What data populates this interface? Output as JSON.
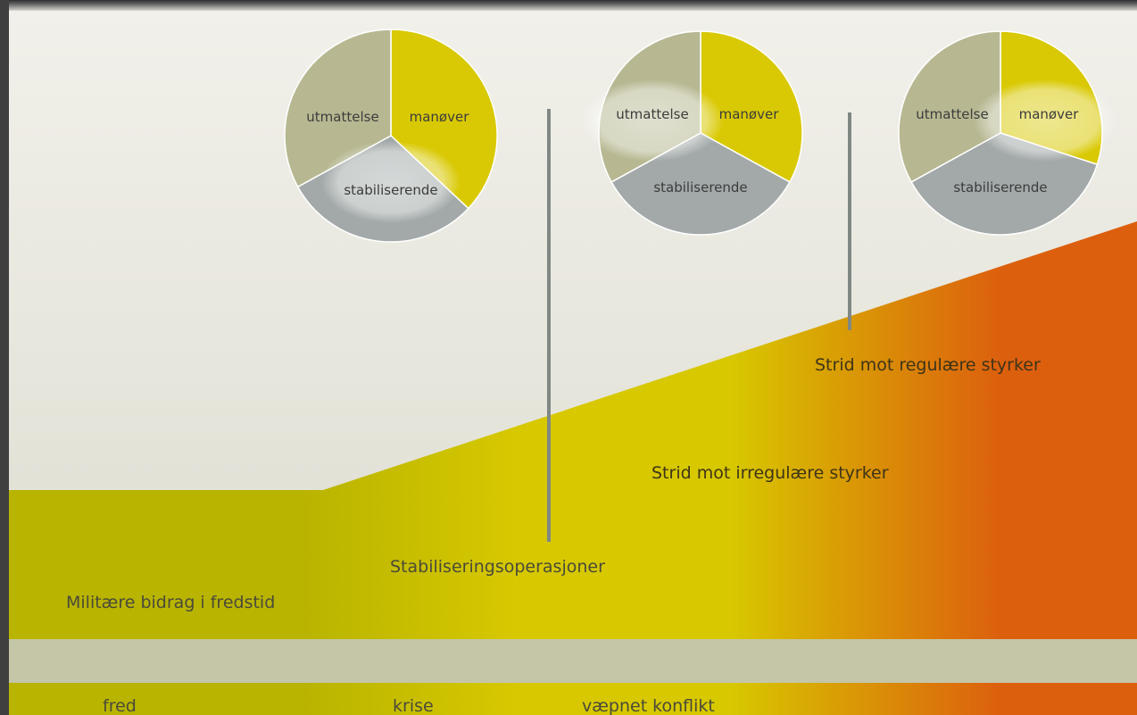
{
  "colors": {
    "stabilization_band": "#c4c6a7",
    "gradient_start": "#b9b400",
    "gradient_mid": "#d7c800",
    "gradient_end": "#dc5f0e",
    "divider": "#808884",
    "slice_attrition": "#b7b892",
    "slice_maneuver": "#d9c904",
    "slice_stabilizing": "#a2a9a8"
  },
  "operations": [
    {
      "key": "peace_contrib",
      "label": "Militære bidrag i fredstid"
    },
    {
      "key": "stabilization",
      "label": "Stabiliseringsoperasjoner"
    },
    {
      "key": "irregular",
      "label": "Strid mot irregulære styrker"
    },
    {
      "key": "regular",
      "label": "Strid mot regulære styrker"
    }
  ],
  "states": [
    {
      "key": "peace",
      "label": "fred"
    },
    {
      "key": "crisis",
      "label": "krise"
    },
    {
      "key": "armed_conflict",
      "label": "væpnet konflikt"
    }
  ],
  "pies": [
    {
      "name": "pie-1",
      "emphasis": "stabiliserende",
      "slices": [
        {
          "key": "manover",
          "label": "manøver",
          "share": 0.37,
          "color_key": "slice_maneuver"
        },
        {
          "key": "stabiliserende",
          "label": "stabiliserende",
          "share": 0.3,
          "color_key": "slice_stabilizing"
        },
        {
          "key": "utmattelse",
          "label": "utmattelse",
          "share": 0.33,
          "color_key": "slice_attrition"
        }
      ]
    },
    {
      "name": "pie-2",
      "emphasis": "utmattelse",
      "slices": [
        {
          "key": "manover",
          "label": "manøver",
          "share": 0.33,
          "color_key": "slice_maneuver"
        },
        {
          "key": "stabiliserende",
          "label": "stabiliserende",
          "share": 0.34,
          "color_key": "slice_stabilizing"
        },
        {
          "key": "utmattelse",
          "label": "utmattelse",
          "share": 0.33,
          "color_key": "slice_attrition"
        }
      ]
    },
    {
      "name": "pie-3",
      "emphasis": "manøver",
      "slices": [
        {
          "key": "manover",
          "label": "manøver",
          "share": 0.3,
          "color_key": "slice_maneuver"
        },
        {
          "key": "stabiliserende",
          "label": "stabiliserende",
          "share": 0.37,
          "color_key": "slice_stabilizing"
        },
        {
          "key": "utmattelse",
          "label": "utmattelse",
          "share": 0.33,
          "color_key": "slice_attrition"
        }
      ]
    }
  ]
}
